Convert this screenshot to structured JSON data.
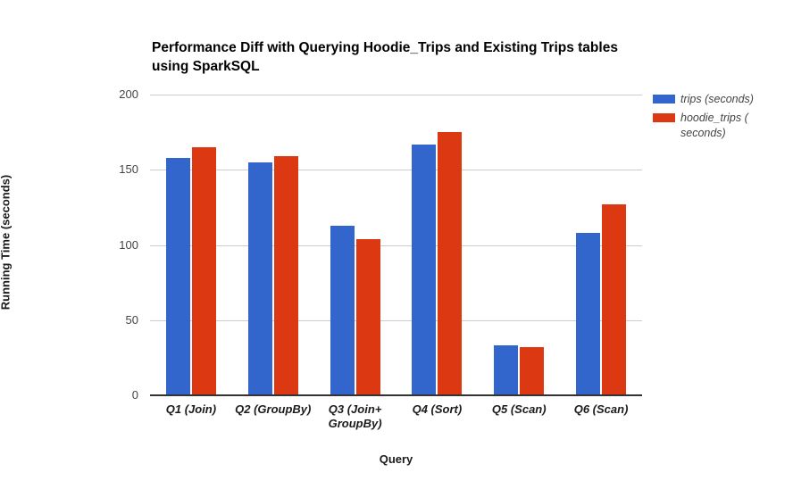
{
  "title_lines": [
    "Performance Diff with Querying Hoodie_Trips and Existing Trips tables",
    "using SparkSQL"
  ],
  "axes": {
    "y_title": "Running Time (seconds)",
    "x_title": "Query"
  },
  "colors": {
    "background": "#ffffff",
    "gridline": "#cccccc",
    "baseline": "#333333",
    "tick_label": "#444444",
    "series_blue": "#3366cc",
    "series_red": "#dc3912"
  },
  "chart_data": {
    "type": "bar",
    "title": "Performance Diff with Querying Hoodie_Trips and Existing Trips tables using SparkSQL",
    "xlabel": "Query",
    "ylabel": "Running Time (seconds)",
    "ylim": [
      0,
      200
    ],
    "yticks": [
      0,
      50,
      100,
      150,
      200
    ],
    "grid": true,
    "legend_position": "right",
    "categories": [
      "Q1 (Join)",
      "Q2 (GroupBy)",
      "Q3 (Join+\nGroupBy)",
      "Q4 (Sort)",
      "Q5 (Scan)",
      "Q6 (Scan)"
    ],
    "series": [
      {
        "name": "trips (seconds)",
        "legend_label": "trips (seconds)",
        "color": "#3366cc",
        "values": [
          158,
          155,
          113,
          167,
          33,
          108
        ]
      },
      {
        "name": "hoodie_trips (seconds)",
        "legend_label": "hoodie_trips (\nseconds)",
        "color": "#dc3912",
        "values": [
          165,
          159,
          104,
          175,
          32,
          127
        ]
      }
    ]
  }
}
